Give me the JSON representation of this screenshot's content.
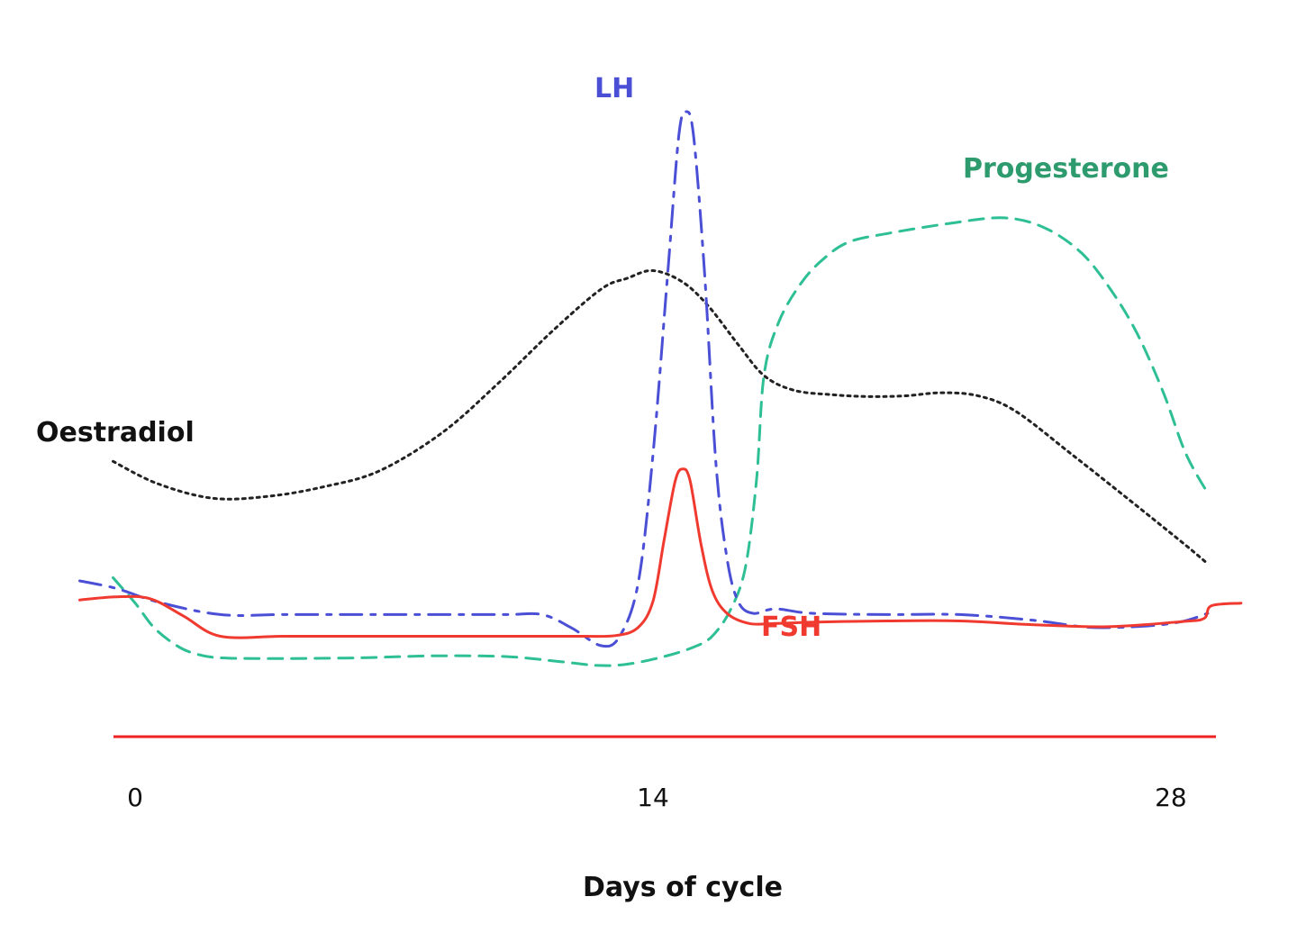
{
  "chart_data": {
    "type": "line",
    "xlabel": "Days of cycle",
    "ylabel": "",
    "xlim": [
      -2,
      30
    ],
    "ylim": [
      0,
      100
    ],
    "x_ticks": [
      0,
      14,
      28
    ],
    "x_tick_labels": [
      "0",
      "14",
      "28"
    ],
    "grid": false,
    "legend": "none (series labelled inline)",
    "series": [
      {
        "name": "Oestradiol",
        "color": "#222222",
        "style": "dotted",
        "points": [
          [
            -0.6,
            43.3
          ],
          [
            0.6,
            39.8
          ],
          [
            2.1,
            37.5
          ],
          [
            3.6,
            37.8
          ],
          [
            5.1,
            39.3
          ],
          [
            6.6,
            41.8
          ],
          [
            8.3,
            47.8
          ],
          [
            9.8,
            55.5
          ],
          [
            11.3,
            63.9
          ],
          [
            12.6,
            70.4
          ],
          [
            13.3,
            72.1
          ],
          [
            14.0,
            73.3
          ],
          [
            14.8,
            71.5
          ],
          [
            15.5,
            67.7
          ],
          [
            16.3,
            61.7
          ],
          [
            17.0,
            56.8
          ],
          [
            17.8,
            54.5
          ],
          [
            18.8,
            53.8
          ],
          [
            19.8,
            53.5
          ],
          [
            20.8,
            53.6
          ],
          [
            21.8,
            54.1
          ],
          [
            22.8,
            53.6
          ],
          [
            23.8,
            51.2
          ],
          [
            25.3,
            44.5
          ],
          [
            26.8,
            37.6
          ],
          [
            28.3,
            30.6
          ],
          [
            29.0,
            27.2
          ]
        ]
      },
      {
        "name": "LH",
        "color": "#4a4fd6",
        "style": "dash-dot",
        "points": [
          [
            -1.5,
            24.5
          ],
          [
            -0.5,
            23.3
          ],
          [
            0.6,
            21.2
          ],
          [
            2.3,
            19.2
          ],
          [
            4.0,
            19.2
          ],
          [
            6.0,
            19.2
          ],
          [
            8.0,
            19.2
          ],
          [
            10.0,
            19.2
          ],
          [
            11.0,
            19.2
          ],
          [
            11.8,
            17.1
          ],
          [
            12.6,
            14.3
          ],
          [
            13.1,
            15.8
          ],
          [
            13.6,
            24.2
          ],
          [
            14.0,
            44.4
          ],
          [
            14.4,
            73.0
          ],
          [
            14.7,
            94.6
          ],
          [
            14.9,
            98.3
          ],
          [
            15.1,
            94.3
          ],
          [
            15.4,
            72.4
          ],
          [
            15.7,
            43.1
          ],
          [
            16.0,
            28.1
          ],
          [
            16.3,
            21.3
          ],
          [
            16.7,
            19.4
          ],
          [
            17.3,
            20.1
          ],
          [
            18.3,
            19.4
          ],
          [
            20.3,
            19.2
          ],
          [
            22.3,
            19.2
          ],
          [
            24.3,
            18.3
          ],
          [
            25.8,
            17.2
          ],
          [
            27.3,
            17.4
          ],
          [
            28.3,
            18.1
          ],
          [
            29.0,
            19.4
          ]
        ]
      },
      {
        "name": "FSH",
        "color": "#f03a2f",
        "style": "solid",
        "points": [
          [
            -1.5,
            21.5
          ],
          [
            -0.5,
            22.0
          ],
          [
            0.4,
            21.7
          ],
          [
            1.3,
            19.0
          ],
          [
            2.3,
            15.8
          ],
          [
            4.0,
            15.8
          ],
          [
            6.0,
            15.8
          ],
          [
            8.0,
            15.8
          ],
          [
            10.0,
            15.8
          ],
          [
            12.0,
            15.8
          ],
          [
            13.0,
            15.9
          ],
          [
            13.6,
            17.2
          ],
          [
            14.0,
            21.3
          ],
          [
            14.3,
            30.9
          ],
          [
            14.6,
            40.2
          ],
          [
            14.8,
            42.1
          ],
          [
            15.0,
            40.3
          ],
          [
            15.3,
            30.2
          ],
          [
            15.6,
            23.0
          ],
          [
            16.0,
            19.4
          ],
          [
            16.6,
            17.8
          ],
          [
            17.3,
            17.8
          ],
          [
            18.3,
            18.0
          ],
          [
            20.3,
            18.2
          ],
          [
            22.3,
            18.2
          ],
          [
            24.3,
            17.6
          ],
          [
            26.3,
            17.3
          ],
          [
            28.3,
            18.1
          ],
          [
            28.9,
            18.6
          ],
          [
            29.1,
            20.6
          ],
          [
            29.9,
            21.0
          ]
        ]
      },
      {
        "name": "Progesterone",
        "color": "#2ebf95",
        "style": "dashed",
        "points": [
          [
            -0.6,
            25.0
          ],
          [
            0.0,
            21.0
          ],
          [
            0.5,
            17.2
          ],
          [
            1.1,
            14.4
          ],
          [
            1.6,
            13.1
          ],
          [
            2.3,
            12.4
          ],
          [
            4.0,
            12.3
          ],
          [
            6.0,
            12.4
          ],
          [
            8.0,
            12.7
          ],
          [
            10.0,
            12.6
          ],
          [
            11.5,
            11.8
          ],
          [
            12.5,
            11.2
          ],
          [
            13.3,
            11.4
          ],
          [
            14.3,
            12.6
          ],
          [
            15.1,
            14.1
          ],
          [
            15.6,
            15.8
          ],
          [
            16.1,
            20.0
          ],
          [
            16.5,
            26.7
          ],
          [
            16.8,
            40.5
          ],
          [
            17.0,
            56.8
          ],
          [
            17.4,
            65.2
          ],
          [
            18.0,
            71.3
          ],
          [
            18.6,
            75.1
          ],
          [
            19.3,
            77.8
          ],
          [
            20.4,
            79.2
          ],
          [
            22.1,
            80.8
          ],
          [
            23.5,
            81.6
          ],
          [
            24.6,
            80.0
          ],
          [
            25.6,
            76.0
          ],
          [
            26.4,
            70.1
          ],
          [
            27.1,
            63.3
          ],
          [
            27.8,
            54.1
          ],
          [
            28.4,
            44.6
          ],
          [
            29.0,
            38.3
          ]
        ]
      }
    ],
    "annotations": [
      {
        "text": "Oestradiol",
        "series": "Oestradiol",
        "color": "#111111"
      },
      {
        "text": "LH",
        "series": "LH",
        "color": "#4a4fd6"
      },
      {
        "text": "Progesterone",
        "series": "Progesterone",
        "color": "#2e9b6e"
      },
      {
        "text": "FSH",
        "series": "FSH",
        "color": "#f03a2f"
      }
    ],
    "axis_line_color": "#ee2222"
  }
}
